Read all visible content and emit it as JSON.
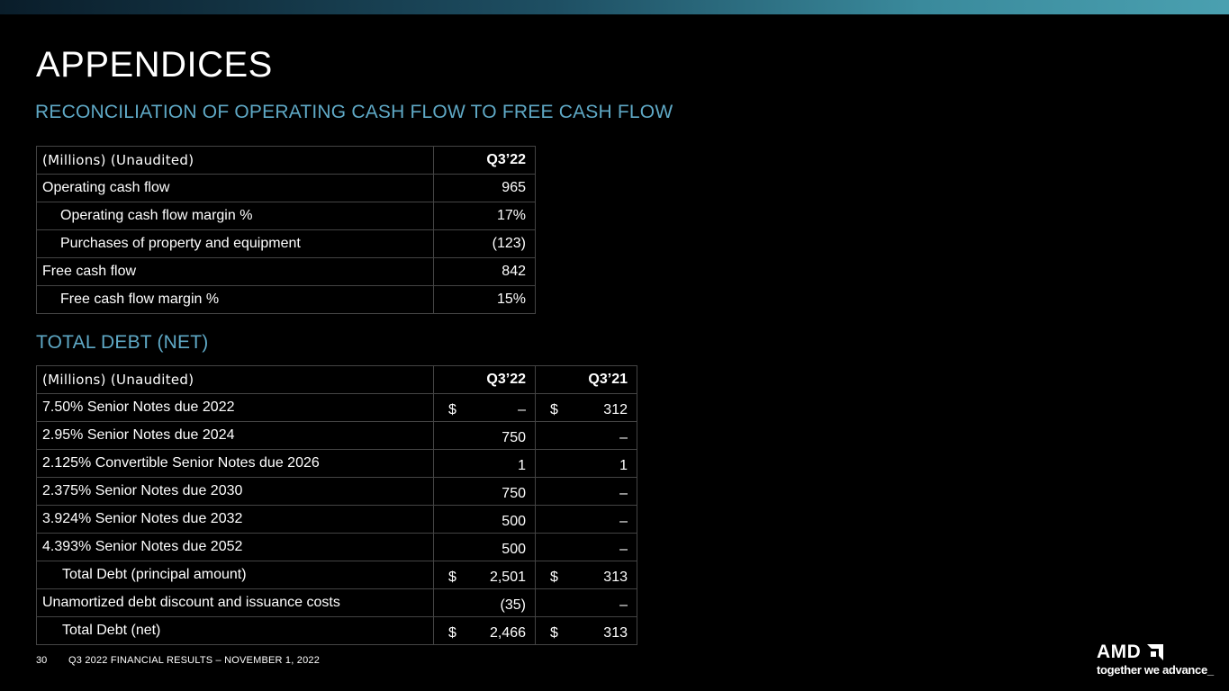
{
  "slide": {
    "title": "APPENDICES",
    "subtitle_cash": "RECONCILIATION OF OPERATING CASH FLOW TO FREE CASH FLOW",
    "subtitle_debt": "TOTAL DEBT (NET)"
  },
  "cash_table": {
    "header": {
      "label": "(Millions) (Unaudited)",
      "col1": "Q3’22"
    },
    "rows": [
      {
        "label": "Operating cash flow",
        "value": "965"
      },
      {
        "label": "Operating cash flow margin %",
        "value": "17%"
      },
      {
        "label": "Purchases of property and equipment",
        "value": "(123)"
      },
      {
        "label": "Free cash flow",
        "value": "842"
      },
      {
        "label": "Free cash flow margin %",
        "value": "15%"
      }
    ]
  },
  "debt_table": {
    "header": {
      "label": "(Millions) (Unaudited)",
      "col1": "Q3’22",
      "col2": "Q3’21"
    },
    "rows": [
      {
        "label": "7.50% Senior Notes due 2022",
        "q322_sym": "$",
        "q322": "–",
        "q321_sym": "$",
        "q321": "312"
      },
      {
        "label": "2.95% Senior Notes due 2024",
        "q322_sym": "",
        "q322": "750",
        "q321_sym": "",
        "q321": "–"
      },
      {
        "label": "2.125% Convertible Senior Notes due 2026",
        "q322_sym": "",
        "q322": "1",
        "q321_sym": "",
        "q321": "1"
      },
      {
        "label": "2.375% Senior Notes due 2030",
        "q322_sym": "",
        "q322": "750",
        "q321_sym": "",
        "q321": "–"
      },
      {
        "label": "3.924% Senior Notes due 2032",
        "q322_sym": "",
        "q322": "500",
        "q321_sym": "",
        "q321": "–"
      },
      {
        "label": "4.393% Senior Notes due 2052",
        "q322_sym": "",
        "q322": "500",
        "q321_sym": "",
        "q321": "–"
      },
      {
        "label": "Total Debt (principal amount)",
        "q322_sym": "$",
        "q322": "2,501",
        "q321_sym": "$",
        "q321": "313"
      },
      {
        "label": "Unamortized debt discount and issuance costs",
        "q322_sym": "",
        "q322": "(35)",
        "q321_sym": "",
        "q321": "–"
      },
      {
        "label": "Total Debt (net)",
        "q322_sym": "$",
        "q322": "2,466",
        "q321_sym": "$",
        "q321": "313"
      }
    ]
  },
  "footer": {
    "page_number": "30",
    "text": "Q3 2022 FINANCIAL RESULTS – NOVEMBER 1, 2022"
  },
  "logo": {
    "wordmark": "AMD",
    "tagline": "together we advance_"
  },
  "colors": {
    "accent": "#5fa9c6",
    "background": "#000000",
    "grid": "#444444"
  }
}
